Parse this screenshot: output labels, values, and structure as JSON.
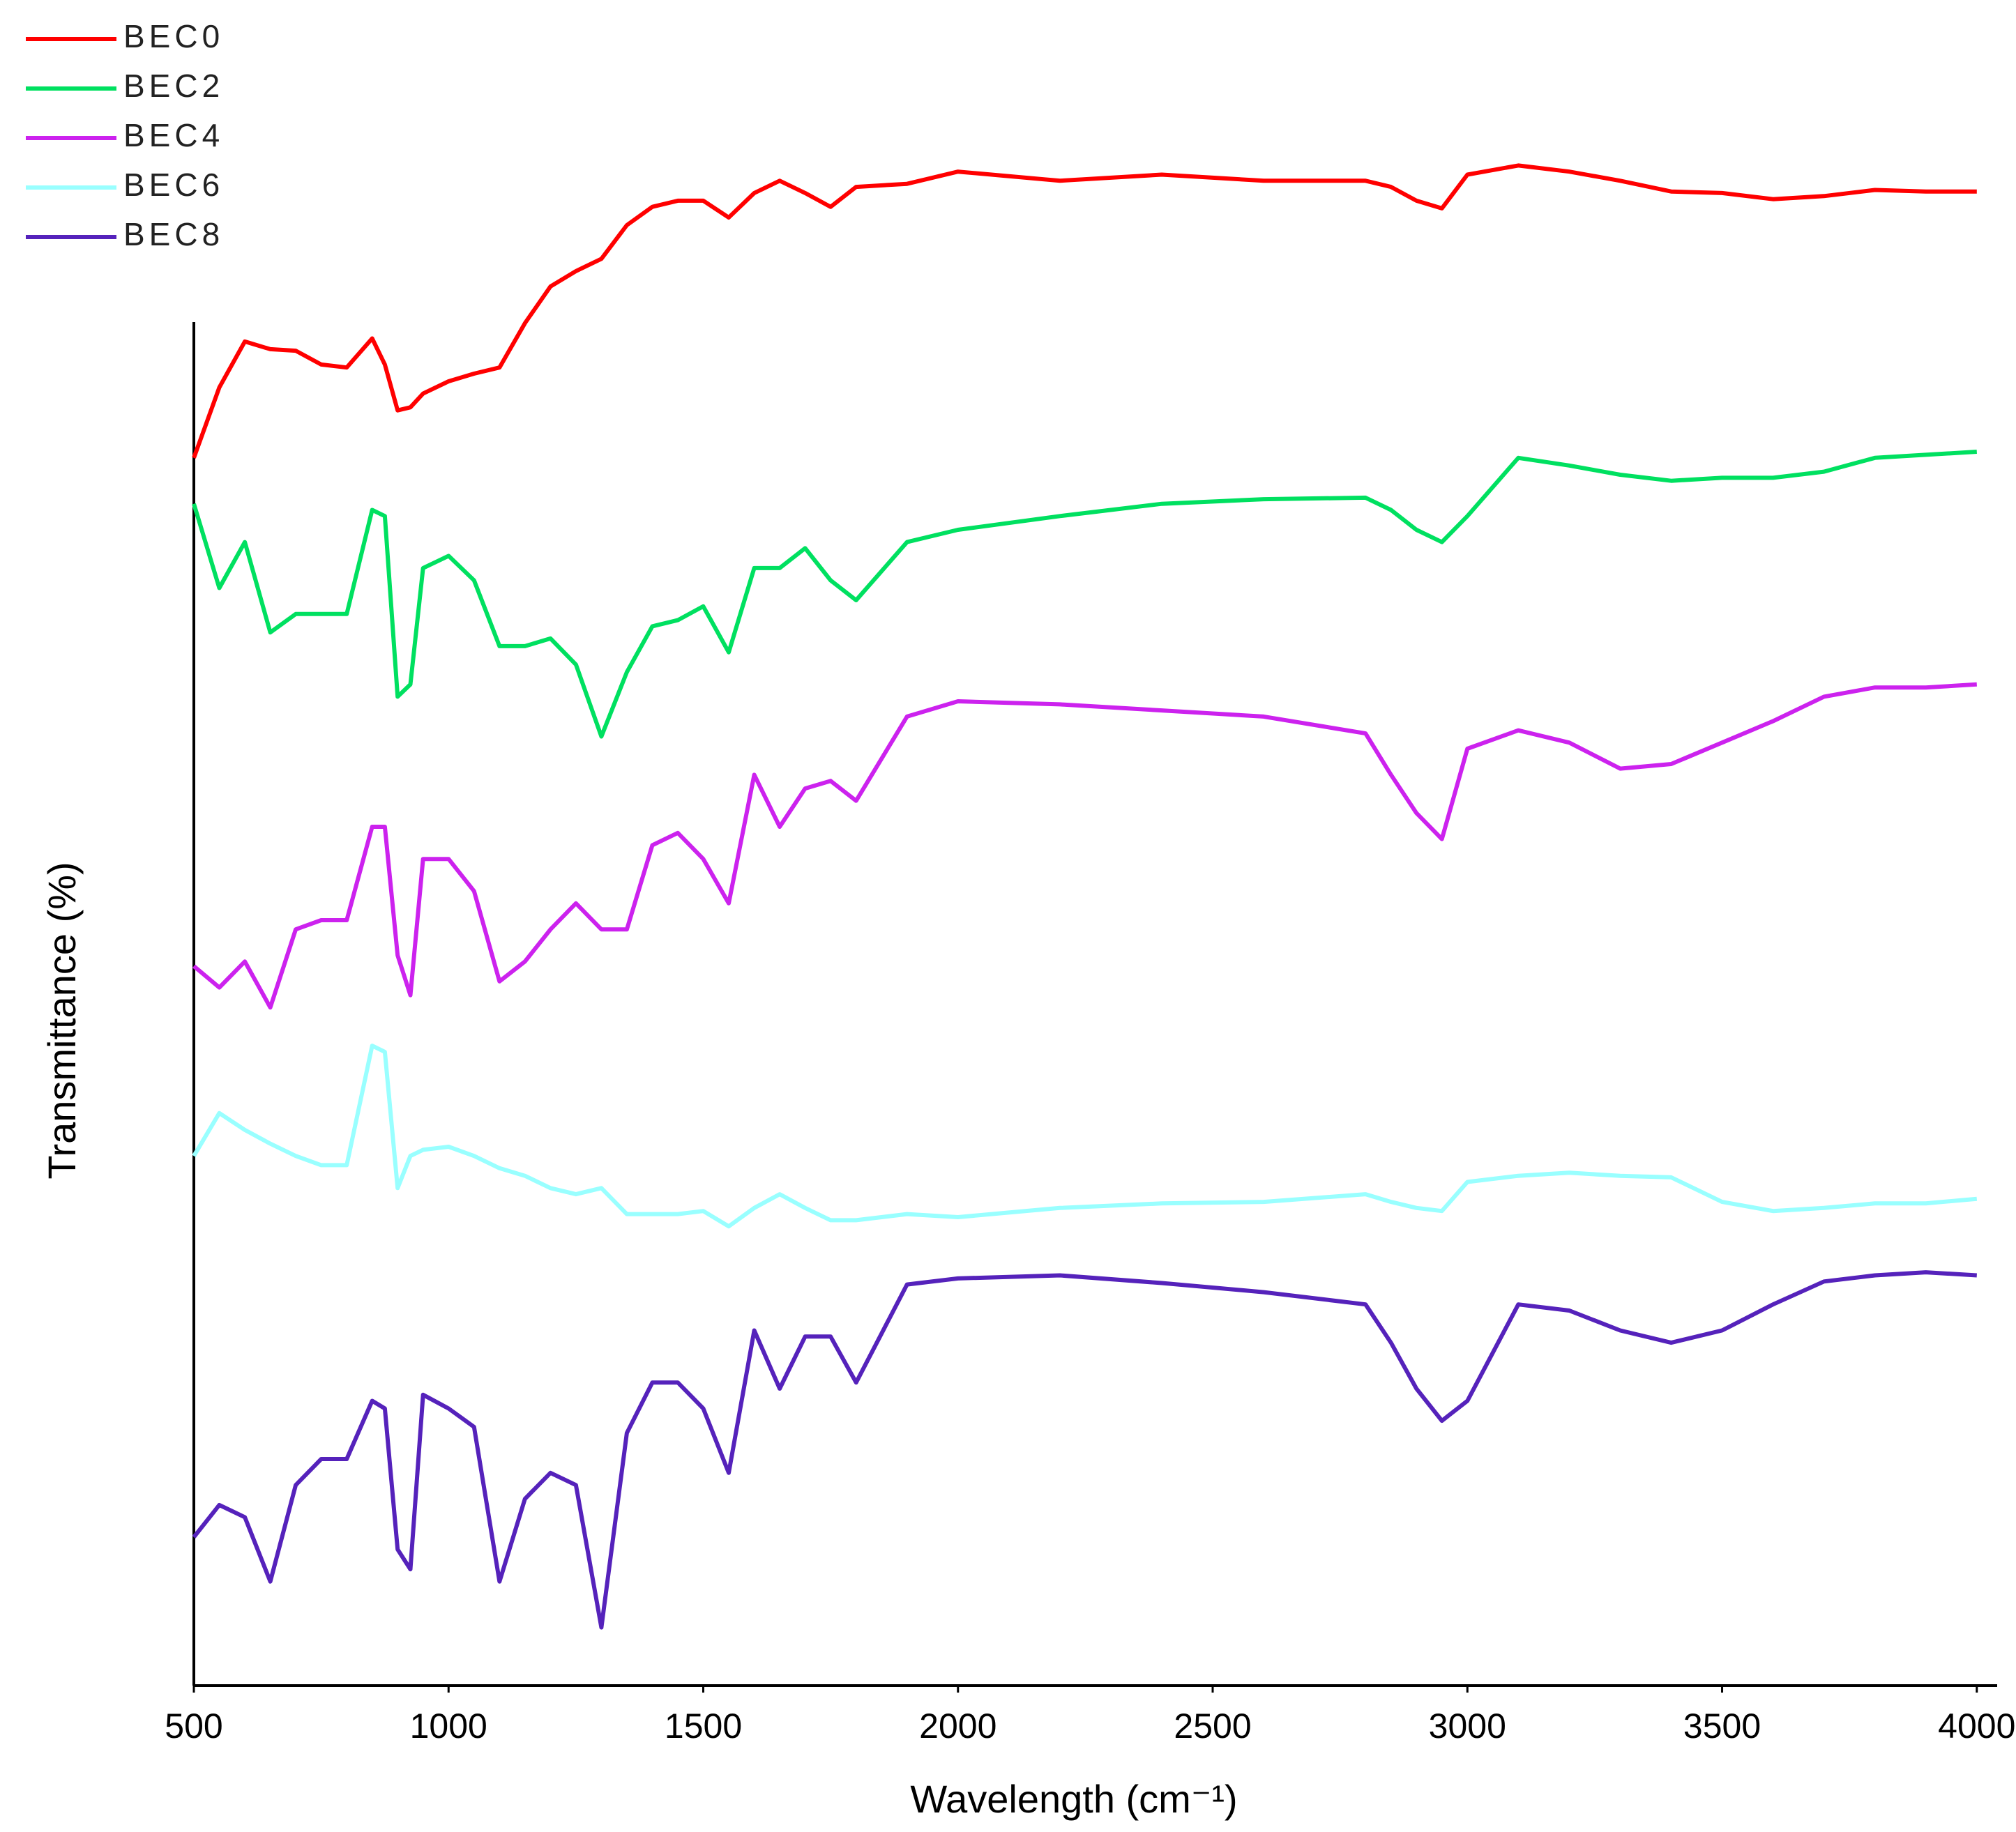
{
  "chart_data": {
    "type": "line",
    "x_label": "Wavelength (cm⁻¹)",
    "y_label": "Transmittance (%)",
    "x": [
      500,
      550,
      600,
      650,
      700,
      750,
      800,
      850,
      875,
      900,
      925,
      950,
      1000,
      1050,
      1100,
      1150,
      1200,
      1250,
      1300,
      1350,
      1400,
      1450,
      1500,
      1550,
      1600,
      1650,
      1700,
      1750,
      1800,
      1900,
      2000,
      2200,
      2400,
      2600,
      2800,
      2850,
      2900,
      2950,
      3000,
      3100,
      3200,
      3300,
      3400,
      3500,
      3600,
      3700,
      3800,
      3900,
      4000
    ],
    "xlim": [
      500,
      4040
    ],
    "xticks": [
      500,
      1000,
      1500,
      2000,
      2500,
      3000,
      3500,
      4000
    ],
    "ylim": [
      0,
      100
    ],
    "legend": "upper left",
    "series": [
      {
        "name": "BEC0",
        "color": "#ff0000",
        "values": [
          80.2,
          84.8,
          87.8,
          87.3,
          87.2,
          86.3,
          86.1,
          88.0,
          86.3,
          83.3,
          83.5,
          84.4,
          85.2,
          85.7,
          86.1,
          89.0,
          91.4,
          92.4,
          93.2,
          95.4,
          96.6,
          97.0,
          97.0,
          95.9,
          97.5,
          98.3,
          97.5,
          96.6,
          97.9,
          98.1,
          98.9,
          98.3,
          98.7,
          98.3,
          98.3,
          97.9,
          97.0,
          96.5,
          98.7,
          99.3,
          98.9,
          98.3,
          97.6,
          97.5,
          97.1,
          97.3,
          97.7,
          97.6,
          97.6
        ]
      },
      {
        "name": "BEC2",
        "color": "#00e060",
        "values": [
          77.2,
          71.7,
          74.7,
          68.8,
          70.0,
          70.0,
          70.0,
          76.8,
          76.4,
          64.6,
          65.4,
          73.0,
          73.8,
          72.2,
          67.9,
          67.9,
          68.4,
          66.7,
          62.0,
          66.2,
          69.2,
          69.6,
          70.5,
          67.5,
          73.0,
          73.0,
          74.3,
          72.2,
          70.9,
          74.7,
          75.5,
          76.4,
          77.2,
          77.5,
          77.6,
          76.8,
          75.5,
          74.7,
          76.4,
          80.2,
          79.7,
          79.1,
          78.7,
          78.9,
          78.9,
          79.3,
          80.2,
          80.4,
          80.6
        ]
      },
      {
        "name": "BEC4",
        "color": "#cc22ee",
        "values": [
          47.0,
          45.6,
          47.3,
          44.3,
          49.4,
          50.0,
          50.0,
          56.1,
          56.1,
          47.7,
          45.1,
          54.0,
          54.0,
          51.9,
          46.0,
          47.3,
          49.4,
          51.1,
          49.4,
          49.4,
          54.9,
          55.7,
          54.0,
          51.1,
          59.5,
          56.1,
          58.6,
          59.1,
          57.8,
          63.3,
          64.3,
          64.1,
          63.7,
          63.3,
          62.2,
          59.5,
          57.0,
          55.3,
          61.2,
          62.4,
          61.6,
          59.9,
          60.2,
          61.6,
          63.0,
          64.6,
          65.2,
          65.2,
          65.4
        ]
      },
      {
        "name": "BEC6",
        "color": "#99ffff",
        "values": [
          34.6,
          37.4,
          36.3,
          35.4,
          34.6,
          34.0,
          34.0,
          41.8,
          41.4,
          32.5,
          34.6,
          35.0,
          35.2,
          34.6,
          33.8,
          33.3,
          32.5,
          32.1,
          32.5,
          30.8,
          30.8,
          30.8,
          31.0,
          30.0,
          31.2,
          32.1,
          31.2,
          30.4,
          30.4,
          30.8,
          30.6,
          31.2,
          31.5,
          31.6,
          32.1,
          31.6,
          31.2,
          31.0,
          32.9,
          33.3,
          33.5,
          33.3,
          33.2,
          31.6,
          31.0,
          31.2,
          31.5,
          31.5,
          31.8
        ]
      },
      {
        "name": "BEC8",
        "color": "#5522bb",
        "values": [
          9.7,
          11.8,
          11.0,
          6.8,
          13.1,
          14.8,
          14.8,
          18.6,
          18.1,
          8.9,
          7.6,
          19.0,
          18.1,
          16.9,
          6.8,
          12.2,
          13.9,
          13.1,
          3.8,
          16.5,
          19.8,
          19.8,
          18.1,
          13.9,
          23.2,
          19.4,
          22.8,
          22.8,
          19.8,
          26.2,
          26.6,
          26.8,
          26.3,
          25.7,
          24.9,
          22.4,
          19.4,
          17.3,
          18.6,
          24.9,
          24.5,
          23.2,
          22.4,
          23.2,
          24.9,
          26.4,
          26.8,
          27.0,
          26.8
        ]
      }
    ]
  }
}
